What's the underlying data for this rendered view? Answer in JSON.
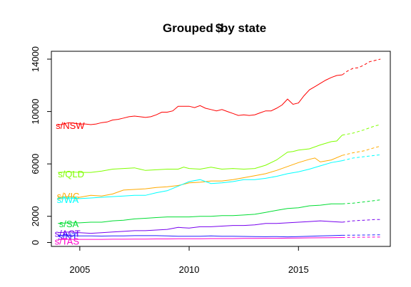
{
  "chart_data": {
    "type": "line",
    "title_main": "Grouped",
    "title_overlap": "$",
    "title_rest": " by state",
    "xlim": [
      2003.7,
      2019.2
    ],
    "ylim": [
      -300,
      14600
    ],
    "x_ticks": [
      2005,
      2010,
      2015
    ],
    "y_ticks": [
      0,
      2000,
      6000,
      10000,
      14000
    ],
    "grid": false,
    "forecast_start": 2017.0,
    "series": [
      {
        "name": "s/NSW",
        "color": "#ff0000",
        "label_x": 2003.9,
        "label_y": 8950,
        "hist": [
          [
            2004.0,
            8950
          ],
          [
            2004.25,
            9050
          ],
          [
            2004.5,
            9150
          ],
          [
            2004.75,
            9100
          ],
          [
            2005.0,
            9050
          ],
          [
            2005.25,
            9050
          ],
          [
            2005.5,
            9000
          ],
          [
            2005.75,
            9050
          ],
          [
            2006.0,
            9150
          ],
          [
            2006.25,
            9200
          ],
          [
            2006.5,
            9350
          ],
          [
            2006.75,
            9400
          ],
          [
            2007.0,
            9500
          ],
          [
            2007.25,
            9600
          ],
          [
            2007.5,
            9650
          ],
          [
            2007.75,
            9600
          ],
          [
            2008.0,
            9550
          ],
          [
            2008.25,
            9600
          ],
          [
            2008.5,
            9750
          ],
          [
            2008.75,
            9950
          ],
          [
            2009.0,
            9950
          ],
          [
            2009.25,
            10050
          ],
          [
            2009.5,
            10400
          ],
          [
            2009.75,
            10400
          ],
          [
            2010.0,
            10400
          ],
          [
            2010.25,
            10300
          ],
          [
            2010.5,
            10450
          ],
          [
            2010.75,
            10250
          ],
          [
            2011.0,
            10150
          ],
          [
            2011.25,
            10050
          ],
          [
            2011.5,
            10150
          ],
          [
            2011.75,
            10000
          ],
          [
            2012.0,
            9850
          ],
          [
            2012.25,
            9700
          ],
          [
            2012.5,
            9750
          ],
          [
            2012.75,
            9700
          ],
          [
            2013.0,
            9750
          ],
          [
            2013.25,
            9900
          ],
          [
            2013.5,
            10050
          ],
          [
            2013.75,
            10050
          ],
          [
            2014.0,
            10250
          ],
          [
            2014.25,
            10500
          ],
          [
            2014.5,
            10950
          ],
          [
            2014.75,
            10550
          ],
          [
            2015.0,
            10650
          ],
          [
            2015.25,
            11200
          ],
          [
            2015.5,
            11650
          ],
          [
            2015.75,
            11900
          ],
          [
            2016.0,
            12150
          ],
          [
            2016.25,
            12400
          ],
          [
            2016.5,
            12600
          ],
          [
            2016.75,
            12750
          ],
          [
            2017.0,
            12800
          ]
        ],
        "fcst": [
          [
            2017.0,
            12800
          ],
          [
            2017.25,
            13100
          ],
          [
            2017.5,
            13300
          ],
          [
            2017.75,
            13350
          ],
          [
            2018.0,
            13550
          ],
          [
            2018.25,
            13800
          ],
          [
            2018.5,
            13900
          ],
          [
            2018.75,
            14000
          ]
        ]
      },
      {
        "name": "s/QLD",
        "color": "#80ff00",
        "label_x": 2004.0,
        "label_y": 5250,
        "hist": [
          [
            2004.0,
            5350
          ],
          [
            2004.5,
            5400
          ],
          [
            2005.0,
            5350
          ],
          [
            2005.5,
            5350
          ],
          [
            2006.0,
            5450
          ],
          [
            2006.5,
            5600
          ],
          [
            2007.0,
            5650
          ],
          [
            2007.5,
            5700
          ],
          [
            2007.75,
            5600
          ],
          [
            2008.0,
            5500
          ],
          [
            2008.5,
            5550
          ],
          [
            2009.0,
            5600
          ],
          [
            2009.5,
            5600
          ],
          [
            2009.75,
            5750
          ],
          [
            2010.0,
            5650
          ],
          [
            2010.5,
            5600
          ],
          [
            2011.0,
            5750
          ],
          [
            2011.5,
            5600
          ],
          [
            2012.0,
            5650
          ],
          [
            2012.5,
            5600
          ],
          [
            2013.0,
            5650
          ],
          [
            2013.5,
            5900
          ],
          [
            2014.0,
            6300
          ],
          [
            2014.25,
            6600
          ],
          [
            2014.5,
            6900
          ],
          [
            2014.75,
            6950
          ],
          [
            2015.0,
            7050
          ],
          [
            2015.5,
            7150
          ],
          [
            2016.0,
            7450
          ],
          [
            2016.5,
            7700
          ],
          [
            2016.75,
            7750
          ],
          [
            2017.0,
            8200
          ]
        ],
        "fcst": [
          [
            2017.0,
            8200
          ],
          [
            2017.5,
            8350
          ],
          [
            2018.0,
            8600
          ],
          [
            2018.5,
            8900
          ],
          [
            2018.75,
            9000
          ]
        ]
      },
      {
        "name": "s/VIC",
        "color": "#ffaa00",
        "label_x": 2003.95,
        "label_y": 3550,
        "hist": [
          [
            2004.0,
            3450
          ],
          [
            2004.5,
            3500
          ],
          [
            2005.0,
            3450
          ],
          [
            2005.5,
            3600
          ],
          [
            2006.0,
            3550
          ],
          [
            2006.5,
            3700
          ],
          [
            2007.0,
            4000
          ],
          [
            2007.5,
            4050
          ],
          [
            2008.0,
            4100
          ],
          [
            2008.5,
            4200
          ],
          [
            2009.0,
            4250
          ],
          [
            2009.5,
            4350
          ],
          [
            2010.0,
            4550
          ],
          [
            2010.5,
            4600
          ],
          [
            2011.0,
            4700
          ],
          [
            2011.5,
            4700
          ],
          [
            2012.0,
            4800
          ],
          [
            2012.5,
            4950
          ],
          [
            2013.0,
            5100
          ],
          [
            2013.5,
            5250
          ],
          [
            2014.0,
            5500
          ],
          [
            2014.5,
            5800
          ],
          [
            2015.0,
            6100
          ],
          [
            2015.5,
            6350
          ],
          [
            2015.75,
            6450
          ],
          [
            2016.0,
            6150
          ],
          [
            2016.5,
            6300
          ],
          [
            2017.0,
            6650
          ]
        ],
        "fcst": [
          [
            2017.0,
            6650
          ],
          [
            2017.5,
            6850
          ],
          [
            2018.0,
            7000
          ],
          [
            2018.5,
            7250
          ],
          [
            2018.75,
            7350
          ]
        ]
      },
      {
        "name": "s/WA",
        "color": "#00ffff",
        "label_x": 2003.95,
        "label_y": 3300,
        "hist": [
          [
            2004.0,
            3400
          ],
          [
            2004.5,
            3400
          ],
          [
            2005.0,
            3350
          ],
          [
            2005.5,
            3400
          ],
          [
            2006.0,
            3450
          ],
          [
            2006.5,
            3500
          ],
          [
            2007.0,
            3550
          ],
          [
            2007.5,
            3600
          ],
          [
            2008.0,
            3600
          ],
          [
            2008.5,
            3800
          ],
          [
            2009.0,
            3950
          ],
          [
            2009.5,
            4300
          ],
          [
            2010.0,
            4650
          ],
          [
            2010.5,
            4800
          ],
          [
            2011.0,
            4500
          ],
          [
            2011.5,
            4550
          ],
          [
            2012.0,
            4650
          ],
          [
            2012.5,
            4800
          ],
          [
            2013.0,
            4800
          ],
          [
            2013.5,
            4900
          ],
          [
            2014.0,
            5050
          ],
          [
            2014.5,
            5250
          ],
          [
            2015.0,
            5400
          ],
          [
            2015.5,
            5600
          ],
          [
            2016.0,
            5850
          ],
          [
            2016.5,
            6100
          ],
          [
            2017.0,
            6250
          ]
        ],
        "fcst": [
          [
            2017.0,
            6250
          ],
          [
            2017.5,
            6450
          ],
          [
            2018.0,
            6550
          ],
          [
            2018.5,
            6650
          ],
          [
            2018.75,
            6700
          ]
        ]
      },
      {
        "name": "s/SA",
        "color": "#00dd33",
        "label_x": 2004.05,
        "label_y": 1450,
        "hist": [
          [
            2004.0,
            1450
          ],
          [
            2004.5,
            1500
          ],
          [
            2005.0,
            1500
          ],
          [
            2005.5,
            1550
          ],
          [
            2006.0,
            1550
          ],
          [
            2006.5,
            1650
          ],
          [
            2007.0,
            1700
          ],
          [
            2007.5,
            1800
          ],
          [
            2008.0,
            1850
          ],
          [
            2008.5,
            1900
          ],
          [
            2009.0,
            1950
          ],
          [
            2009.5,
            1950
          ],
          [
            2010.0,
            1950
          ],
          [
            2010.5,
            2000
          ],
          [
            2011.0,
            2000
          ],
          [
            2011.5,
            2050
          ],
          [
            2012.0,
            2050
          ],
          [
            2012.5,
            2100
          ],
          [
            2013.0,
            2150
          ],
          [
            2013.5,
            2300
          ],
          [
            2014.0,
            2450
          ],
          [
            2014.5,
            2600
          ],
          [
            2015.0,
            2650
          ],
          [
            2015.5,
            2800
          ],
          [
            2016.0,
            2850
          ],
          [
            2016.5,
            2950
          ],
          [
            2017.0,
            2950
          ]
        ],
        "fcst": [
          [
            2017.0,
            2950
          ],
          [
            2017.5,
            3000
          ],
          [
            2018.0,
            3100
          ],
          [
            2018.5,
            3200
          ],
          [
            2018.75,
            3250
          ]
        ]
      },
      {
        "name": "s/ACT",
        "color": "#7700ee",
        "label_x": 2003.85,
        "label_y": 700,
        "hist": [
          [
            2004.0,
            750
          ],
          [
            2004.5,
            800
          ],
          [
            2005.0,
            750
          ],
          [
            2005.5,
            700
          ],
          [
            2006.0,
            750
          ],
          [
            2006.5,
            800
          ],
          [
            2007.0,
            850
          ],
          [
            2007.5,
            900
          ],
          [
            2008.0,
            900
          ],
          [
            2008.5,
            950
          ],
          [
            2009.0,
            1000
          ],
          [
            2009.5,
            1150
          ],
          [
            2010.0,
            1100
          ],
          [
            2010.5,
            1200
          ],
          [
            2011.0,
            1200
          ],
          [
            2011.5,
            1250
          ],
          [
            2012.0,
            1300
          ],
          [
            2012.5,
            1300
          ],
          [
            2013.0,
            1350
          ],
          [
            2013.5,
            1450
          ],
          [
            2014.0,
            1450
          ],
          [
            2014.5,
            1500
          ],
          [
            2015.0,
            1550
          ],
          [
            2015.5,
            1600
          ],
          [
            2016.0,
            1650
          ],
          [
            2016.5,
            1600
          ],
          [
            2017.0,
            1550
          ]
        ],
        "fcst": [
          [
            2017.0,
            1550
          ],
          [
            2017.5,
            1650
          ],
          [
            2018.0,
            1700
          ],
          [
            2018.5,
            1750
          ],
          [
            2018.75,
            1750
          ]
        ]
      },
      {
        "name": "s/NT",
        "color": "#2222ff",
        "label_x": 2004.0,
        "label_y": 480,
        "hist": [
          [
            2004.0,
            520
          ],
          [
            2004.5,
            520
          ],
          [
            2005.0,
            500
          ],
          [
            2005.5,
            500
          ],
          [
            2006.0,
            490
          ],
          [
            2006.5,
            500
          ],
          [
            2007.0,
            500
          ],
          [
            2007.5,
            520
          ],
          [
            2008.0,
            520
          ],
          [
            2008.5,
            520
          ],
          [
            2009.0,
            500
          ],
          [
            2009.5,
            480
          ],
          [
            2010.0,
            470
          ],
          [
            2010.5,
            480
          ],
          [
            2011.0,
            500
          ],
          [
            2011.5,
            480
          ],
          [
            2012.0,
            470
          ],
          [
            2012.5,
            460
          ],
          [
            2013.0,
            450
          ],
          [
            2013.5,
            440
          ],
          [
            2014.0,
            450
          ],
          [
            2014.5,
            430
          ],
          [
            2015.0,
            450
          ],
          [
            2015.5,
            480
          ],
          [
            2016.0,
            500
          ],
          [
            2016.5,
            520
          ],
          [
            2017.0,
            550
          ]
        ],
        "fcst": [
          [
            2017.0,
            550
          ],
          [
            2017.5,
            560
          ],
          [
            2018.0,
            570
          ],
          [
            2018.5,
            580
          ],
          [
            2018.75,
            585
          ]
        ]
      },
      {
        "name": "s/TAS",
        "color": "#ff00cc",
        "label_x": 2003.85,
        "label_y": 100,
        "hist": [
          [
            2004.0,
            230
          ],
          [
            2004.5,
            240
          ],
          [
            2005.0,
            240
          ],
          [
            2005.5,
            240
          ],
          [
            2006.0,
            240
          ],
          [
            2006.5,
            250
          ],
          [
            2007.0,
            250
          ],
          [
            2007.5,
            260
          ],
          [
            2008.0,
            260
          ],
          [
            2008.5,
            270
          ],
          [
            2009.0,
            270
          ],
          [
            2009.5,
            280
          ],
          [
            2010.0,
            280
          ],
          [
            2010.5,
            290
          ],
          [
            2011.0,
            300
          ],
          [
            2011.5,
            300
          ],
          [
            2012.0,
            300
          ],
          [
            2012.5,
            310
          ],
          [
            2013.0,
            310
          ],
          [
            2013.5,
            320
          ],
          [
            2014.0,
            320
          ],
          [
            2014.5,
            330
          ],
          [
            2015.0,
            340
          ],
          [
            2015.5,
            350
          ],
          [
            2016.0,
            360
          ],
          [
            2016.5,
            370
          ],
          [
            2017.0,
            380
          ]
        ],
        "fcst": [
          [
            2017.0,
            380
          ],
          [
            2017.5,
            390
          ],
          [
            2018.0,
            400
          ],
          [
            2018.5,
            410
          ],
          [
            2018.75,
            415
          ]
        ]
      }
    ]
  }
}
